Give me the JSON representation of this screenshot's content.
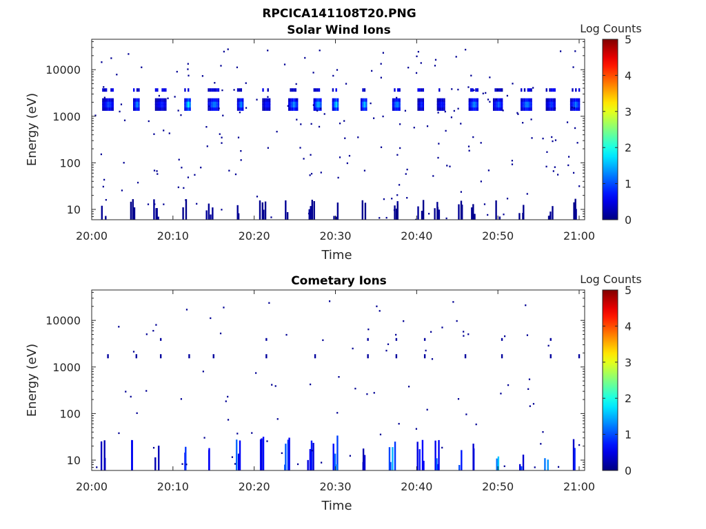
{
  "figure": {
    "title": "RPCICA141108T20.PNG"
  },
  "chart_data": [
    {
      "type": "heatmap",
      "title": "Solar Wind Ions",
      "xlabel": "Time",
      "ylabel": "Energy (eV)",
      "x_ticks": [
        "20:00",
        "20:10",
        "20:20",
        "20:30",
        "20:40",
        "20:50",
        "21:00"
      ],
      "x_range": [
        "20:00",
        "21:00"
      ],
      "y_scale": "log",
      "y_ticks": [
        "10",
        "100",
        "1000",
        "10000"
      ],
      "ylim": [
        6,
        45000
      ],
      "colorbar": {
        "label": "Log Counts",
        "ticks": [
          "0",
          "1",
          "2",
          "3",
          "4",
          "5"
        ],
        "range": [
          0,
          5
        ],
        "colormap": "jet"
      },
      "features": {
        "low_energy_bursts_time_min": [
          1.5,
          5,
          8,
          11.5,
          14.5,
          18,
          21,
          24,
          27,
          30,
          33.5,
          37.5,
          40.5,
          42.5,
          45.5,
          47,
          50,
          53,
          56.5,
          59.5
        ],
        "low_energy_range_eV": [
          6,
          17
        ],
        "solar_wind_peaks_time_min": [
          2,
          5.5,
          8.5,
          11.8,
          15,
          18.3,
          21.5,
          24.8,
          27.8,
          30,
          33.5,
          37.5,
          40.5,
          43,
          47,
          50,
          53.5,
          56.5,
          59.5
        ],
        "solar_wind_peak_energy_eV": 1800,
        "solar_wind_peak_log_counts": [
          1.0,
          1.3,
          0.8,
          1.8,
          1.3,
          1.3,
          0.8,
          1.3,
          1.6,
          1.7,
          1.6,
          1.4,
          0.8,
          0.8,
          1.3,
          1.1,
          1.3,
          0.9,
          1.2
        ]
      }
    },
    {
      "type": "heatmap",
      "title": "Cometary Ions",
      "xlabel": "Time",
      "ylabel": "Energy (eV)",
      "x_ticks": [
        "20:00",
        "20:10",
        "20:20",
        "20:30",
        "20:40",
        "20:50",
        "21:00"
      ],
      "x_range": [
        "20:00",
        "21:00"
      ],
      "y_scale": "log",
      "y_ticks": [
        "10",
        "100",
        "1000",
        "10000"
      ],
      "ylim": [
        6,
        45000
      ],
      "colorbar": {
        "label": "Log Counts",
        "ticks": [
          "0",
          "1",
          "2",
          "3",
          "4",
          "5"
        ],
        "range": [
          0,
          5
        ],
        "colormap": "jet"
      },
      "features": {
        "low_energy_bursts_time_min": [
          1.5,
          5,
          8,
          11.5,
          14.5,
          18,
          21,
          24,
          27,
          30,
          33.5,
          37,
          40.5,
          42.5,
          45.5,
          47,
          50,
          53,
          56,
          59.5
        ],
        "low_energy_range_eV": [
          6,
          35
        ],
        "low_energy_peak_log_counts": [
          0.3,
          0.7,
          0.3,
          0.8,
          0.5,
          0.9,
          0.6,
          1.0,
          0.6,
          1.2,
          0.4,
          1.3,
          0.7,
          1.0,
          0.8,
          0.6,
          1.5,
          0.8,
          1.2,
          0.6
        ]
      }
    }
  ]
}
